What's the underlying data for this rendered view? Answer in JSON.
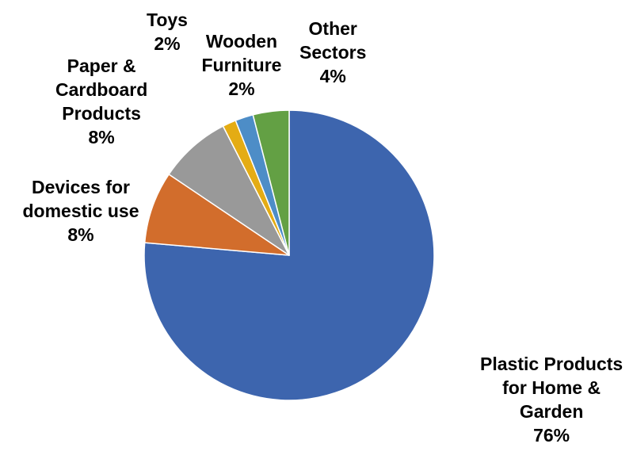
{
  "chart_data": {
    "type": "pie",
    "title": "",
    "start_angle_deg": 0,
    "direction": "clockwise",
    "slices": [
      {
        "label_lines": [
          "Plastic Products",
          "for Home &",
          "Garden"
        ],
        "value": 76,
        "value_label": "76%",
        "color": "#3D65AE"
      },
      {
        "label_lines": [
          "Devices for",
          "domestic use"
        ],
        "value": 8,
        "value_label": "8%",
        "color": "#D26D2C"
      },
      {
        "label_lines": [
          "Paper &",
          "Cardboard",
          "Products"
        ],
        "value": 8,
        "value_label": "8%",
        "color": "#999999"
      },
      {
        "label_lines": [
          "Toys"
        ],
        "value": 1.5,
        "value_label": "2%",
        "color": "#E4AC14"
      },
      {
        "label_lines": [
          "Wooden",
          "Furniture"
        ],
        "value": 2,
        "value_label": "2%",
        "color": "#4D8DC7"
      },
      {
        "label_lines": [
          "Other",
          "Sectors"
        ],
        "value": 4,
        "value_label": "4%",
        "color": "#63A044"
      }
    ]
  }
}
